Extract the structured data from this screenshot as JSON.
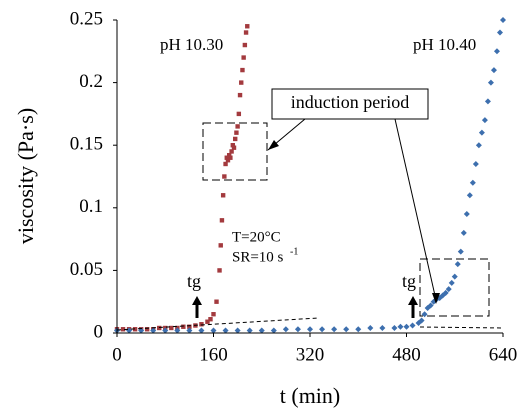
{
  "chart_data": {
    "type": "scatter",
    "xlabel": "t (min)",
    "ylabel": "viscosity (Pa·s)",
    "xlim": [
      0,
      640
    ],
    "xticks": [
      0,
      160,
      320,
      480,
      640
    ],
    "ylim": [
      0,
      0.25
    ],
    "yticks": [
      0,
      0.05,
      0.1,
      0.15,
      0.2,
      0.25
    ],
    "grid": false,
    "annotations": [
      "pH 10.30",
      "pH 10.40",
      "induction period",
      "T=20°C",
      "SR=10 s",
      "-1",
      "tg",
      "tg"
    ],
    "series": [
      {
        "name": "pH 10.30",
        "color": "#a33a3e",
        "marker": "square",
        "x": [
          0,
          10,
          20,
          30,
          40,
          50,
          60,
          70,
          80,
          90,
          100,
          110,
          120,
          130,
          140,
          150,
          155,
          160,
          165,
          170,
          172,
          174,
          176,
          178,
          180,
          182,
          184,
          186,
          188,
          190,
          192,
          194,
          196,
          198,
          200,
          202,
          204,
          206,
          208,
          210,
          212,
          214,
          216
        ],
        "values": [
          0.003,
          0.003,
          0.003,
          0.003,
          0.003,
          0.003,
          0.003,
          0.004,
          0.004,
          0.004,
          0.004,
          0.005,
          0.005,
          0.006,
          0.007,
          0.009,
          0.011,
          0.015,
          0.025,
          0.05,
          0.07,
          0.09,
          0.11,
          0.125,
          0.135,
          0.14,
          0.138,
          0.142,
          0.14,
          0.145,
          0.15,
          0.148,
          0.155,
          0.16,
          0.165,
          0.175,
          0.19,
          0.2,
          0.21,
          0.22,
          0.23,
          0.24,
          0.245
        ]
      },
      {
        "name": "pH 10.40",
        "color": "#3d6fae",
        "marker": "diamond",
        "x": [
          0,
          20,
          40,
          60,
          80,
          100,
          120,
          140,
          160,
          180,
          200,
          220,
          240,
          260,
          280,
          300,
          320,
          340,
          360,
          380,
          400,
          420,
          440,
          460,
          470,
          480,
          490,
          500,
          505,
          510,
          515,
          520,
          525,
          530,
          535,
          540,
          545,
          550,
          555,
          560,
          565,
          570,
          575,
          580,
          585,
          590,
          595,
          600,
          605,
          610,
          615,
          620,
          625,
          630,
          635,
          640
        ],
        "values": [
          0.002,
          0.002,
          0.002,
          0.002,
          0.002,
          0.002,
          0.002,
          0.002,
          0.002,
          0.002,
          0.002,
          0.002,
          0.002,
          0.002,
          0.003,
          0.003,
          0.003,
          0.003,
          0.003,
          0.003,
          0.003,
          0.004,
          0.004,
          0.004,
          0.005,
          0.005,
          0.006,
          0.008,
          0.01,
          0.015,
          0.02,
          0.022,
          0.025,
          0.027,
          0.028,
          0.03,
          0.032,
          0.035,
          0.04,
          0.045,
          0.055,
          0.065,
          0.08,
          0.095,
          0.11,
          0.12,
          0.135,
          0.15,
          0.16,
          0.17,
          0.185,
          0.2,
          0.21,
          0.225,
          0.24,
          0.25
        ]
      }
    ]
  }
}
